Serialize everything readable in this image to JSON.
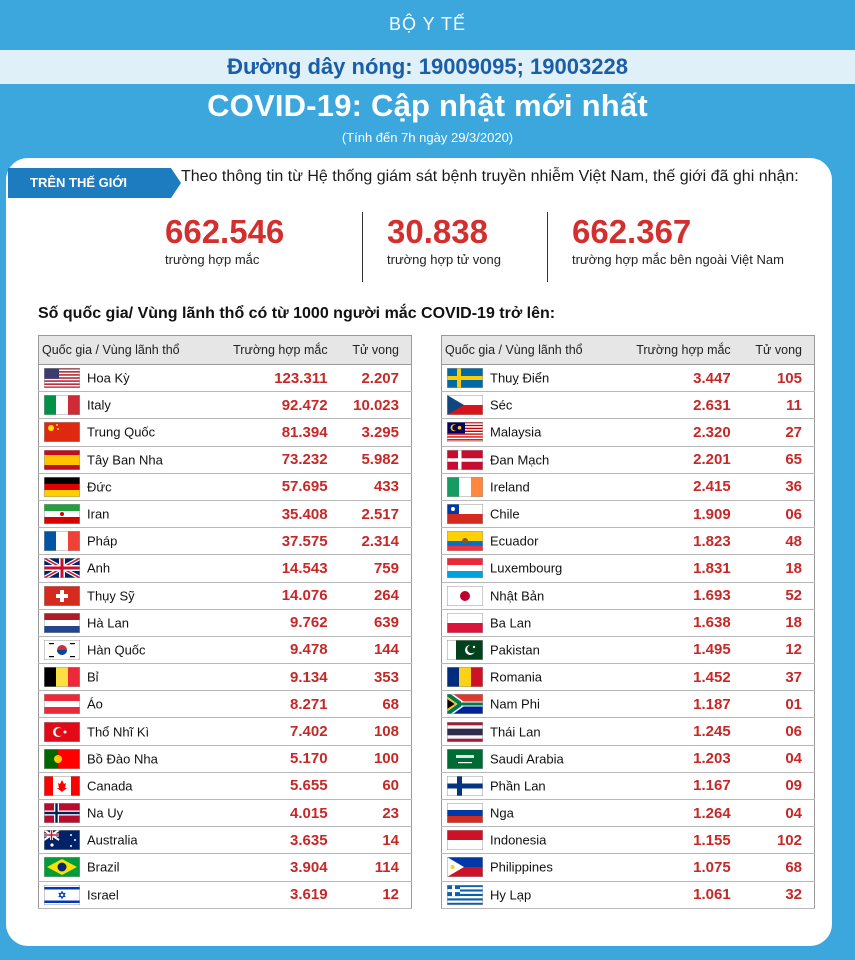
{
  "header": {
    "org": "BỘ Y TẾ",
    "hotline": "Đường dây nóng: 19009095; 19003228",
    "title": "COVID-19: Cập nhật mới nhất",
    "subtitle": "(Tính đến 7h ngày 29/3/2020)"
  },
  "world": {
    "tag": "TRÊN THẾ GIỚI",
    "intro": "Theo thông tin từ Hệ thống giám sát bệnh truyền nhiễm Việt Nam, thế giới đã ghi nhận:",
    "stats": [
      {
        "value": "662.546",
        "label": "trường hợp mắc"
      },
      {
        "value": "30.838",
        "label": "trường hợp tử vong"
      },
      {
        "value": "662.367",
        "label": "trường hợp  mắc bên ngoài Việt Nam"
      }
    ]
  },
  "list_title": "Số quốc gia/ Vùng lãnh thổ có từ 1000 người  mắc COVID-19 trở lên:",
  "columns": {
    "country": "Quốc gia / Vùng lãnh thổ",
    "cases": "Trường hợp mắc",
    "deaths": "Tử vong"
  },
  "left_rows": [
    {
      "flag": "usa-flag-icon",
      "name": "Hoa Kỳ",
      "cases": "123.311",
      "deaths": "2.207"
    },
    {
      "flag": "italy-flag-icon",
      "name": "Italy",
      "cases": "92.472",
      "deaths": "10.023"
    },
    {
      "flag": "china-flag-icon",
      "name": "Trung Quốc",
      "cases": "81.394",
      "deaths": "3.295"
    },
    {
      "flag": "spain-flag-icon",
      "name": "Tây Ban Nha",
      "cases": "73.232",
      "deaths": "5.982"
    },
    {
      "flag": "germany-flag-icon",
      "name": "Đức",
      "cases": "57.695",
      "deaths": "433"
    },
    {
      "flag": "iran-flag-icon",
      "name": "Iran",
      "cases": "35.408",
      "deaths": "2.517"
    },
    {
      "flag": "france-flag-icon",
      "name": "Pháp",
      "cases": "37.575",
      "deaths": "2.314"
    },
    {
      "flag": "uk-flag-icon",
      "name": "Anh",
      "cases": "14.543",
      "deaths": "759"
    },
    {
      "flag": "switzerland-flag-icon",
      "name": "Thụy Sỹ",
      "cases": "14.076",
      "deaths": "264"
    },
    {
      "flag": "netherlands-flag-icon",
      "name": "Hà Lan",
      "cases": "9.762",
      "deaths": "639"
    },
    {
      "flag": "south-korea-flag-icon",
      "name": "Hàn Quốc",
      "cases": "9.478",
      "deaths": "144"
    },
    {
      "flag": "belgium-flag-icon",
      "name": "Bỉ",
      "cases": "9.134",
      "deaths": "353"
    },
    {
      "flag": "austria-flag-icon",
      "name": "Áo",
      "cases": "8.271",
      "deaths": "68"
    },
    {
      "flag": "turkey-flag-icon",
      "name": "Thổ Nhĩ Kì",
      "cases": "7.402",
      "deaths": "108"
    },
    {
      "flag": "portugal-flag-icon",
      "name": "Bồ Đào Nha",
      "cases": "5.170",
      "deaths": "100"
    },
    {
      "flag": "canada-flag-icon",
      "name": "Canada",
      "cases": "5.655",
      "deaths": "60"
    },
    {
      "flag": "norway-flag-icon",
      "name": "Na Uy",
      "cases": "4.015",
      "deaths": "23"
    },
    {
      "flag": "australia-flag-icon",
      "name": "Australia",
      "cases": "3.635",
      "deaths": "14"
    },
    {
      "flag": "brazil-flag-icon",
      "name": "Brazil",
      "cases": "3.904",
      "deaths": "114"
    },
    {
      "flag": "israel-flag-icon",
      "name": "Israel",
      "cases": "3.619",
      "deaths": "12"
    }
  ],
  "right_rows": [
    {
      "flag": "sweden-flag-icon",
      "name": "Thuỵ Điển",
      "cases": "3.447",
      "deaths": "105"
    },
    {
      "flag": "czech-flag-icon",
      "name": "Séc",
      "cases": "2.631",
      "deaths": "11"
    },
    {
      "flag": "malaysia-flag-icon",
      "name": "Malaysia",
      "cases": "2.320",
      "deaths": "27"
    },
    {
      "flag": "denmark-flag-icon",
      "name": "Đan Mạch",
      "cases": "2.201",
      "deaths": "65"
    },
    {
      "flag": "ireland-flag-icon",
      "name": "Ireland",
      "cases": "2.415",
      "deaths": "36"
    },
    {
      "flag": "chile-flag-icon",
      "name": "Chile",
      "cases": "1.909",
      "deaths": "06"
    },
    {
      "flag": "ecuador-flag-icon",
      "name": "Ecuador",
      "cases": "1.823",
      "deaths": "48"
    },
    {
      "flag": "luxembourg-flag-icon",
      "name": "Luxembourg",
      "cases": "1.831",
      "deaths": "18"
    },
    {
      "flag": "japan-flag-icon",
      "name": "Nhật Bản",
      "cases": "1.693",
      "deaths": "52"
    },
    {
      "flag": "poland-flag-icon",
      "name": "Ba Lan",
      "cases": "1.638",
      "deaths": "18"
    },
    {
      "flag": "pakistan-flag-icon",
      "name": "Pakistan",
      "cases": "1.495",
      "deaths": "12"
    },
    {
      "flag": "romania-flag-icon",
      "name": "Romania",
      "cases": "1.452",
      "deaths": "37"
    },
    {
      "flag": "south-africa-flag-icon",
      "name": "Nam Phi",
      "cases": "1.187",
      "deaths": "01"
    },
    {
      "flag": "thailand-flag-icon",
      "name": "Thái Lan",
      "cases": "1.245",
      "deaths": "06"
    },
    {
      "flag": "saudi-arabia-flag-icon",
      "name": "Saudi Arabia",
      "cases": "1.203",
      "deaths": "04"
    },
    {
      "flag": "finland-flag-icon",
      "name": "Phần Lan",
      "cases": "1.167",
      "deaths": "09"
    },
    {
      "flag": "russia-flag-icon",
      "name": "Nga",
      "cases": "1.264",
      "deaths": "04"
    },
    {
      "flag": "indonesia-flag-icon",
      "name": "Indonesia",
      "cases": "1.155",
      "deaths": "102"
    },
    {
      "flag": "philippines-flag-icon",
      "name": "Philippines",
      "cases": "1.075",
      "deaths": "68"
    },
    {
      "flag": "greece-flag-icon",
      "name": "Hy Lạp",
      "cases": "1.061",
      "deaths": "32"
    }
  ],
  "colors": {
    "background": "#3ba7dd",
    "accent": "#1d7bbf",
    "highlight": "#d32f2f"
  }
}
